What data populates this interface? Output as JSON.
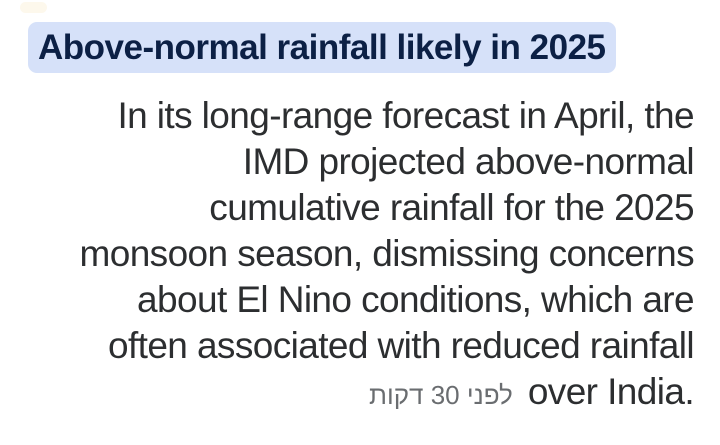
{
  "card": {
    "headline": "Above-normal rainfall likely in 2025",
    "body_lines": [
      "In its long-range forecast in April, the",
      "IMD projected above-normal",
      "cumulative rainfall for the 2025",
      "monsoon season, dismissing concerns",
      "about El Nino conditions, which are",
      "often associated with reduced rainfall"
    ],
    "last_line_text": "over India.",
    "timestamp": "לפני 30 דקות"
  },
  "colors": {
    "background": "#ffffff",
    "headline_highlight": "#d6e1f9",
    "headline_text": "#0c2045",
    "body_text": "#2c2e30",
    "timestamp_text": "#6a6d70"
  }
}
